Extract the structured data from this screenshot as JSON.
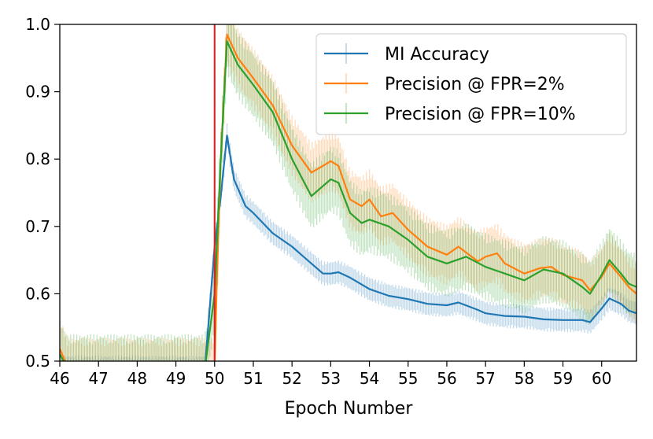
{
  "chart_data": {
    "type": "line",
    "title": "",
    "xlabel": "Epoch Number",
    "ylabel": "",
    "xlim": [
      46,
      60.9
    ],
    "ylim": [
      0.5,
      1.0
    ],
    "x_ticks": [
      "46",
      "47",
      "48",
      "49",
      "50",
      "51",
      "52",
      "53",
      "54",
      "55",
      "56",
      "57",
      "58",
      "59",
      "60"
    ],
    "y_ticks": [
      "0.5",
      "0.6",
      "0.7",
      "0.8",
      "0.9",
      "1.0"
    ],
    "grid": false,
    "legend_position": "top-right",
    "vertical_marker": {
      "x": 50.0,
      "color": "#d62728"
    },
    "series": [
      {
        "name": "MI Accuracy",
        "color": "#1f77b4",
        "error_band": 0.018,
        "points": [
          [
            46.0,
            0.49
          ],
          [
            47.0,
            0.49
          ],
          [
            48.0,
            0.49
          ],
          [
            49.0,
            0.49
          ],
          [
            49.75,
            0.49
          ],
          [
            50.0,
            0.67
          ],
          [
            50.15,
            0.74
          ],
          [
            50.32,
            0.835
          ],
          [
            50.5,
            0.77
          ],
          [
            50.8,
            0.73
          ],
          [
            51.0,
            0.72
          ],
          [
            51.5,
            0.69
          ],
          [
            52.0,
            0.67
          ],
          [
            52.5,
            0.645
          ],
          [
            52.8,
            0.63
          ],
          [
            53.0,
            0.63
          ],
          [
            53.2,
            0.632
          ],
          [
            53.5,
            0.624
          ],
          [
            54.0,
            0.607
          ],
          [
            54.5,
            0.597
          ],
          [
            55.0,
            0.592
          ],
          [
            55.5,
            0.585
          ],
          [
            56.0,
            0.583
          ],
          [
            56.3,
            0.587
          ],
          [
            56.8,
            0.576
          ],
          [
            57.0,
            0.571
          ],
          [
            57.5,
            0.567
          ],
          [
            58.0,
            0.566
          ],
          [
            58.5,
            0.562
          ],
          [
            59.0,
            0.561
          ],
          [
            59.5,
            0.561
          ],
          [
            59.7,
            0.558
          ],
          [
            60.0,
            0.578
          ],
          [
            60.2,
            0.593
          ],
          [
            60.5,
            0.585
          ],
          [
            60.7,
            0.575
          ],
          [
            60.9,
            0.571
          ]
        ]
      },
      {
        "name": "Precision @ FPR=2%",
        "color": "#ff7f0e",
        "error_band": 0.045,
        "points": [
          [
            46.0,
            0.518
          ],
          [
            46.1,
            0.505
          ],
          [
            46.2,
            0.49
          ],
          [
            47.0,
            0.49
          ],
          [
            48.0,
            0.49
          ],
          [
            49.0,
            0.49
          ],
          [
            50.0,
            0.49
          ],
          [
            50.05,
            0.6
          ],
          [
            50.15,
            0.79
          ],
          [
            50.32,
            0.985
          ],
          [
            50.6,
            0.95
          ],
          [
            51.0,
            0.92
          ],
          [
            51.5,
            0.88
          ],
          [
            52.0,
            0.82
          ],
          [
            52.5,
            0.78
          ],
          [
            52.8,
            0.79
          ],
          [
            53.0,
            0.797
          ],
          [
            53.2,
            0.79
          ],
          [
            53.5,
            0.74
          ],
          [
            53.8,
            0.73
          ],
          [
            54.0,
            0.74
          ],
          [
            54.3,
            0.715
          ],
          [
            54.6,
            0.72
          ],
          [
            55.0,
            0.695
          ],
          [
            55.5,
            0.67
          ],
          [
            56.0,
            0.658
          ],
          [
            56.3,
            0.67
          ],
          [
            56.8,
            0.648
          ],
          [
            57.0,
            0.655
          ],
          [
            57.3,
            0.66
          ],
          [
            57.5,
            0.645
          ],
          [
            58.0,
            0.63
          ],
          [
            58.4,
            0.638
          ],
          [
            58.7,
            0.64
          ],
          [
            59.0,
            0.628
          ],
          [
            59.5,
            0.62
          ],
          [
            59.7,
            0.605
          ],
          [
            60.0,
            0.625
          ],
          [
            60.2,
            0.645
          ],
          [
            60.5,
            0.625
          ],
          [
            60.7,
            0.61
          ],
          [
            60.9,
            0.6
          ]
        ]
      },
      {
        "name": "Precision @ FPR=10%",
        "color": "#2ca02c",
        "error_band": 0.05,
        "points": [
          [
            46.0,
            0.51
          ],
          [
            46.2,
            0.49
          ],
          [
            47.0,
            0.49
          ],
          [
            48.0,
            0.49
          ],
          [
            49.0,
            0.49
          ],
          [
            49.75,
            0.49
          ],
          [
            50.0,
            0.6
          ],
          [
            50.15,
            0.79
          ],
          [
            50.32,
            0.975
          ],
          [
            50.6,
            0.94
          ],
          [
            51.0,
            0.91
          ],
          [
            51.5,
            0.87
          ],
          [
            52.0,
            0.8
          ],
          [
            52.5,
            0.745
          ],
          [
            52.8,
            0.76
          ],
          [
            53.0,
            0.77
          ],
          [
            53.2,
            0.765
          ],
          [
            53.5,
            0.72
          ],
          [
            53.8,
            0.705
          ],
          [
            54.0,
            0.71
          ],
          [
            54.5,
            0.7
          ],
          [
            55.0,
            0.68
          ],
          [
            55.5,
            0.655
          ],
          [
            56.0,
            0.645
          ],
          [
            56.5,
            0.655
          ],
          [
            57.0,
            0.64
          ],
          [
            57.5,
            0.63
          ],
          [
            58.0,
            0.62
          ],
          [
            58.5,
            0.636
          ],
          [
            59.0,
            0.63
          ],
          [
            59.5,
            0.61
          ],
          [
            59.7,
            0.6
          ],
          [
            60.0,
            0.628
          ],
          [
            60.2,
            0.65
          ],
          [
            60.5,
            0.63
          ],
          [
            60.7,
            0.615
          ],
          [
            60.9,
            0.61
          ]
        ]
      }
    ]
  }
}
